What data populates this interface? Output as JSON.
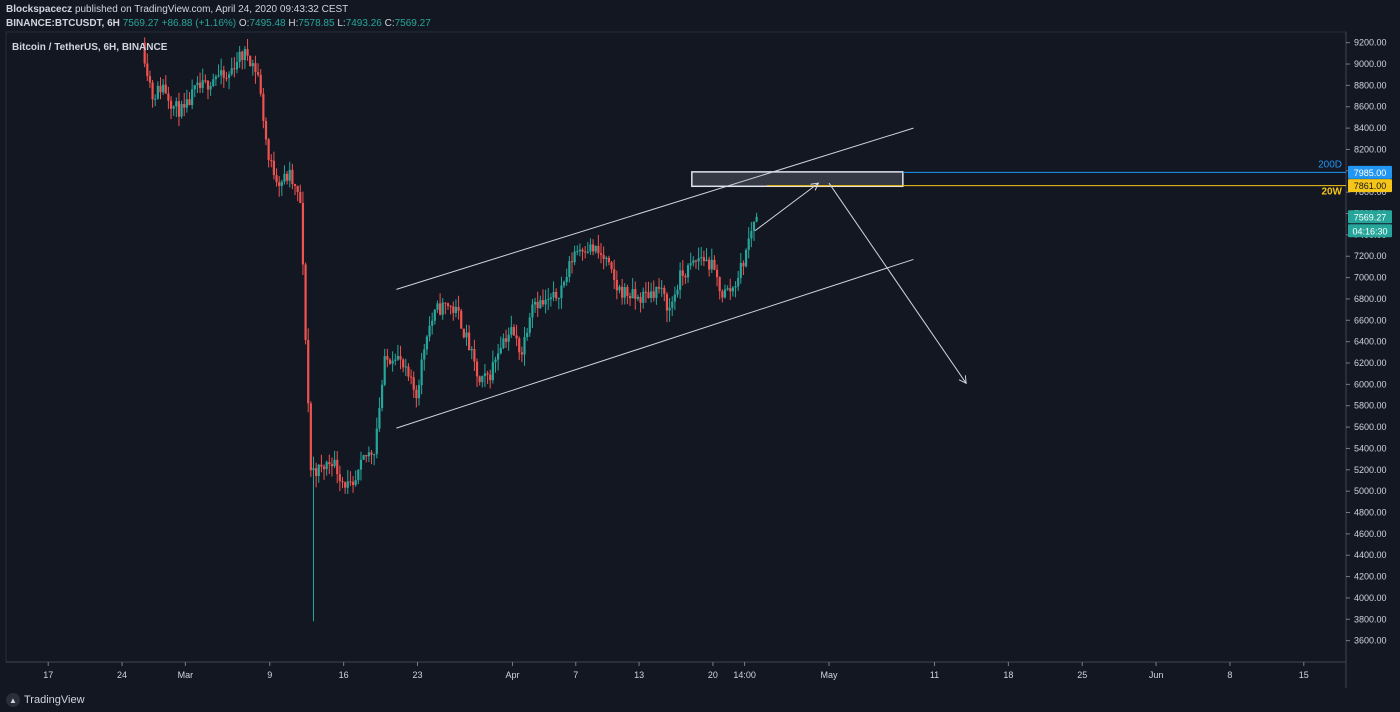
{
  "header": {
    "author": "Blockspacecz",
    "published_text": "published on TradingView.com, April 24, 2020 09:43:32 CEST",
    "symbol": "BINANCE:BTCUSDT, 6H",
    "last": "7569.27",
    "change": "+86.88 (+1.16%)",
    "o_label": "O:",
    "o_value": "7495.48",
    "h_label": "H:",
    "h_value": "7578.85",
    "l_label": "L:",
    "l_value": "7493.26",
    "c_label": "C:",
    "c_value": "7569.27"
  },
  "footer": {
    "logo_text": "TradingView"
  },
  "colors": {
    "background": "#131722",
    "up": "#26a69a",
    "down": "#ef5350",
    "grid": "#2a2e39",
    "level_200d": "#2196f3",
    "level_20w": "#f5c518",
    "drawing": "#d1d4dc"
  },
  "chart_data": {
    "type": "candlestick",
    "title": "Bitcoin / TetherUS, 6H, BINANCE",
    "ylim": [
      3400,
      9300
    ],
    "y_ticks": [
      "9200.00",
      "9000.00",
      "8800.00",
      "8600.00",
      "8400.00",
      "8200.00",
      "8000.00",
      "7800.00",
      "7600.00",
      "7400.00",
      "7200.00",
      "7000.00",
      "6800.00",
      "6600.00",
      "6400.00",
      "6200.00",
      "6000.00",
      "5800.00",
      "5600.00",
      "5400.00",
      "5200.00",
      "5000.00",
      "4800.00",
      "4600.00",
      "4400.00",
      "4200.00",
      "4000.00",
      "3800.00",
      "3600.00"
    ],
    "x_ticks": [
      {
        "label": "17",
        "date": "2020-02-17"
      },
      {
        "label": "24",
        "date": "2020-02-24"
      },
      {
        "label": "Mar",
        "date": "2020-03-01"
      },
      {
        "label": "9",
        "date": "2020-03-09"
      },
      {
        "label": "16",
        "date": "2020-03-16"
      },
      {
        "label": "23",
        "date": "2020-03-23"
      },
      {
        "label": "Apr",
        "date": "2020-04-01"
      },
      {
        "label": "7",
        "date": "2020-04-07"
      },
      {
        "label": "13",
        "date": "2020-04-13"
      },
      {
        "label": "20",
        "date": "2020-04-20"
      },
      {
        "label": "14:00",
        "date": "2020-04-23"
      },
      {
        "label": "May",
        "date": "2020-05-01"
      },
      {
        "label": "11",
        "date": "2020-05-11"
      },
      {
        "label": "18",
        "date": "2020-05-18"
      },
      {
        "label": "25",
        "date": "2020-05-25"
      },
      {
        "label": "Jun",
        "date": "2020-06-01"
      },
      {
        "label": "8",
        "date": "2020-06-08"
      },
      {
        "label": "15",
        "date": "2020-06-15"
      }
    ],
    "price_path": [
      [
        "2020-02-26",
        9200
      ],
      [
        "2020-02-27",
        8700
      ],
      [
        "2020-02-28",
        8800
      ],
      [
        "2020-02-29",
        8600
      ],
      [
        "2020-03-01",
        8550
      ],
      [
        "2020-03-02",
        8750
      ],
      [
        "2020-03-03",
        8800
      ],
      [
        "2020-03-04",
        8900
      ],
      [
        "2020-03-05",
        8850
      ],
      [
        "2020-03-06",
        9050
      ],
      [
        "2020-03-07",
        9100
      ],
      [
        "2020-03-08",
        8900
      ],
      [
        "2020-03-09",
        8100
      ],
      [
        "2020-03-10",
        7900
      ],
      [
        "2020-03-11",
        7950
      ],
      [
        "2020-03-12",
        7700
      ],
      [
        "2020-03-13",
        5200
      ],
      [
        "2020-03-14",
        5200
      ],
      [
        "2020-03-15",
        5300
      ],
      [
        "2020-03-16",
        5100
      ],
      [
        "2020-03-17",
        5000
      ],
      [
        "2020-03-18",
        5300
      ],
      [
        "2020-03-19",
        5400
      ],
      [
        "2020-03-20",
        6200
      ],
      [
        "2020-03-21",
        6300
      ],
      [
        "2020-03-22",
        6100
      ],
      [
        "2020-03-23",
        5900
      ],
      [
        "2020-03-24",
        6500
      ],
      [
        "2020-03-25",
        6700
      ],
      [
        "2020-03-26",
        6750
      ],
      [
        "2020-03-27",
        6650
      ],
      [
        "2020-03-28",
        6350
      ],
      [
        "2020-03-29",
        6000
      ],
      [
        "2020-03-30",
        6100
      ],
      [
        "2020-03-31",
        6400
      ],
      [
        "2020-04-01",
        6500
      ],
      [
        "2020-04-02",
        6300
      ],
      [
        "2020-04-03",
        6800
      ],
      [
        "2020-04-04",
        6750
      ],
      [
        "2020-04-05",
        6800
      ],
      [
        "2020-04-06",
        6950
      ],
      [
        "2020-04-07",
        7250
      ],
      [
        "2020-04-08",
        7300
      ],
      [
        "2020-04-09",
        7250
      ],
      [
        "2020-04-10",
        7150
      ],
      [
        "2020-04-11",
        6900
      ],
      [
        "2020-04-12",
        6850
      ],
      [
        "2020-04-13",
        6800
      ],
      [
        "2020-04-14",
        6850
      ],
      [
        "2020-04-15",
        6900
      ],
      [
        "2020-04-16",
        6700
      ],
      [
        "2020-04-17",
        7000
      ],
      [
        "2020-04-18",
        7100
      ],
      [
        "2020-04-19",
        7200
      ],
      [
        "2020-04-20",
        7100
      ],
      [
        "2020-04-21",
        6850
      ],
      [
        "2020-04-22",
        6900
      ],
      [
        "2020-04-23",
        7150
      ],
      [
        "2020-04-24",
        7550
      ]
    ],
    "price_min_date": "2020-03-13",
    "price_min": 3782,
    "current_price": 7569.27,
    "current_price_label": "7569.27",
    "countdown_label": "04:16:30",
    "levels": [
      {
        "name": "200D",
        "value": 7985.0,
        "label": "7985.00"
      },
      {
        "name": "20W",
        "value": 7861.0,
        "label": "7861.00"
      }
    ],
    "channel_upper": [
      [
        "2020-03-21",
        6890
      ],
      [
        "2020-05-09",
        8400
      ]
    ],
    "channel_lower": [
      [
        "2020-03-21",
        5590
      ],
      [
        "2020-05-09",
        7170
      ]
    ],
    "resistance_box": {
      "x0": "2020-04-18",
      "x1": "2020-05-08",
      "y0": 7855,
      "y1": 7990
    },
    "arrow_up": {
      "from": [
        "2020-04-24",
        7440
      ],
      "to": [
        "2020-04-30",
        7885
      ]
    },
    "arrow_down": {
      "from": [
        "2020-05-01",
        7885
      ],
      "to": [
        "2020-05-14",
        6010
      ]
    }
  }
}
